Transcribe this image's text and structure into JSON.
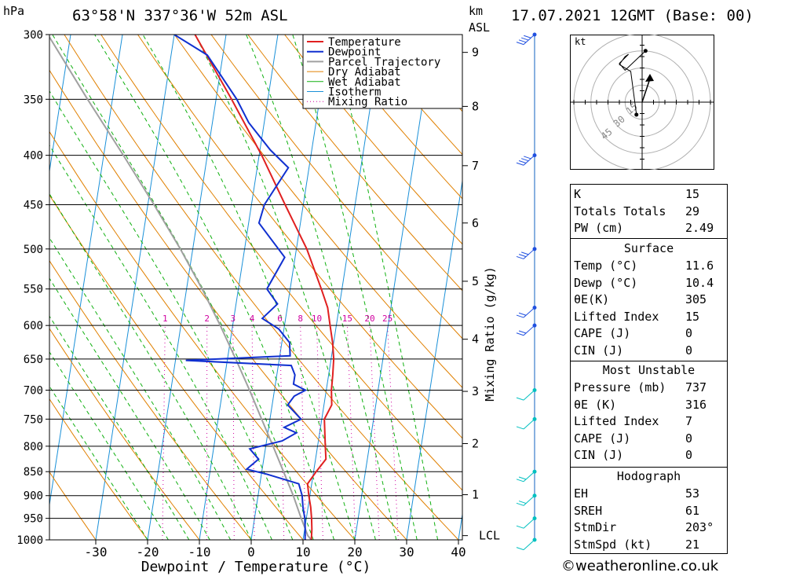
{
  "header": {
    "location": "63°58'N  337°36'W  52m  ASL",
    "datetime": "17.07.2021  12GMT  (Base: 00)",
    "left_unit": "hPa",
    "right_unit_1": "km",
    "right_unit_2": "ASL"
  },
  "chart_data": {
    "type": "skew-t",
    "xlabel": "Dewpoint / Temperature (°C)",
    "ylabel_left": "hPa",
    "ylabel_right": "Mixing Ratio (g/kg)",
    "xlim": [
      -40,
      40
    ],
    "ylim": [
      1000,
      300
    ],
    "x_ticks": [
      -30,
      -20,
      -10,
      0,
      10,
      20,
      30,
      40
    ],
    "pressure_levels": [
      300,
      350,
      400,
      450,
      500,
      550,
      600,
      650,
      700,
      750,
      800,
      850,
      900,
      950,
      1000
    ],
    "height_km_ticks": [
      {
        "label": "9",
        "p": 313
      },
      {
        "label": "8",
        "p": 356
      },
      {
        "label": "7",
        "p": 410
      },
      {
        "label": "6",
        "p": 470
      },
      {
        "label": "5",
        "p": 540
      },
      {
        "label": "4",
        "p": 620
      },
      {
        "label": "3",
        "p": 702
      },
      {
        "label": "2",
        "p": 795
      },
      {
        "label": "1",
        "p": 898
      },
      {
        "label": "LCL",
        "p": 990
      }
    ],
    "mixing_ratio_labels": [
      "1",
      "2",
      "3",
      "4",
      "6",
      "8",
      "10",
      "15",
      "20",
      "25"
    ],
    "legend": [
      "Temperature",
      "Dewpoint",
      "Parcel Trajectory",
      "Dry Adiabat",
      "Wet Adiabat",
      "Isotherm",
      "Mixing Ratio"
    ],
    "legend_placement": "top-right",
    "colors": {
      "temperature": "#e02020",
      "dewpoint": "#1030d0",
      "parcel": "#a0a0a0",
      "dry_adiabat": "#e08000",
      "wet_adiabat": "#10b010",
      "isotherm": "#1a90d8",
      "mixing_ratio": "#d000a0"
    },
    "temperature": [
      {
        "p": 1000,
        "t": 11.6
      },
      {
        "p": 975,
        "t": 11.4
      },
      {
        "p": 950,
        "t": 11.0
      },
      {
        "p": 925,
        "t": 10.5
      },
      {
        "p": 900,
        "t": 9.8
      },
      {
        "p": 875,
        "t": 9.2
      },
      {
        "p": 850,
        "t": 10.5
      },
      {
        "p": 825,
        "t": 12.0
      },
      {
        "p": 800,
        "t": 11.5
      },
      {
        "p": 775,
        "t": 11.0
      },
      {
        "p": 750,
        "t": 10.5
      },
      {
        "p": 725,
        "t": 11.5
      },
      {
        "p": 700,
        "t": 11.0
      },
      {
        "p": 675,
        "t": 10.8
      },
      {
        "p": 650,
        "t": 10.5
      },
      {
        "p": 625,
        "t": 9.8
      },
      {
        "p": 600,
        "t": 8.8
      },
      {
        "p": 575,
        "t": 7.8
      },
      {
        "p": 550,
        "t": 6.0
      },
      {
        "p": 500,
        "t": 2.0
      },
      {
        "p": 450,
        "t": -3.5
      },
      {
        "p": 400,
        "t": -9.5
      },
      {
        "p": 350,
        "t": -17.0
      },
      {
        "p": 300,
        "t": -26.0
      }
    ],
    "dewpoint": [
      {
        "p": 1000,
        "t": 10.4
      },
      {
        "p": 975,
        "t": 10.1
      },
      {
        "p": 950,
        "t": 9.7
      },
      {
        "p": 925,
        "t": 9.0
      },
      {
        "p": 900,
        "t": 8.5
      },
      {
        "p": 875,
        "t": 7.5
      },
      {
        "p": 855,
        "t": 1.0
      },
      {
        "p": 845,
        "t": -3.0
      },
      {
        "p": 825,
        "t": -1.0
      },
      {
        "p": 805,
        "t": -3.0
      },
      {
        "p": 790,
        "t": 3.0
      },
      {
        "p": 775,
        "t": 5.5
      },
      {
        "p": 765,
        "t": 3.0
      },
      {
        "p": 750,
        "t": 6.0
      },
      {
        "p": 725,
        "t": 3.0
      },
      {
        "p": 710,
        "t": 4.0
      },
      {
        "p": 700,
        "t": 6.0
      },
      {
        "p": 690,
        "t": 3.5
      },
      {
        "p": 675,
        "t": 3.5
      },
      {
        "p": 660,
        "t": 2.5
      },
      {
        "p": 652,
        "t": -18.0
      },
      {
        "p": 645,
        "t": 2.0
      },
      {
        "p": 625,
        "t": 1.5
      },
      {
        "p": 605,
        "t": -1.0
      },
      {
        "p": 590,
        "t": -4.5
      },
      {
        "p": 570,
        "t": -2.0
      },
      {
        "p": 550,
        "t": -4.5
      },
      {
        "p": 510,
        "t": -2.0
      },
      {
        "p": 470,
        "t": -8.0
      },
      {
        "p": 450,
        "t": -7.5
      },
      {
        "p": 412,
        "t": -4.0
      },
      {
        "p": 395,
        "t": -8.0
      },
      {
        "p": 370,
        "t": -13.0
      },
      {
        "p": 350,
        "t": -16.0
      },
      {
        "p": 315,
        "t": -23.0
      },
      {
        "p": 300,
        "t": -30.0
      }
    ],
    "parcel": [
      {
        "p": 1000,
        "t": 11.6
      },
      {
        "p": 990,
        "t": 10.8
      },
      {
        "p": 950,
        "t": 9.0
      },
      {
        "p": 900,
        "t": 6.8
      },
      {
        "p": 850,
        "t": 4.2
      },
      {
        "p": 800,
        "t": 1.4
      },
      {
        "p": 750,
        "t": -1.6
      },
      {
        "p": 700,
        "t": -4.8
      },
      {
        "p": 650,
        "t": -8.4
      },
      {
        "p": 600,
        "t": -12.4
      },
      {
        "p": 550,
        "t": -17.0
      },
      {
        "p": 500,
        "t": -22.4
      },
      {
        "p": 450,
        "t": -28.8
      },
      {
        "p": 400,
        "t": -36.2
      },
      {
        "p": 350,
        "t": -44.8
      },
      {
        "p": 300,
        "t": -54.4
      }
    ],
    "wind_barbs": [
      {
        "p": 300,
        "kt": 35
      },
      {
        "p": 400,
        "kt": 35
      },
      {
        "p": 500,
        "kt": 25
      },
      {
        "p": 575,
        "kt": 20
      },
      {
        "p": 600,
        "kt": 20
      },
      {
        "p": 700,
        "kt": 10
      },
      {
        "p": 750,
        "kt": 10
      },
      {
        "p": 850,
        "kt": 15
      },
      {
        "p": 900,
        "kt": 15
      },
      {
        "p": 950,
        "kt": 10
      },
      {
        "p": 1000,
        "kt": 10
      }
    ]
  },
  "hodograph": {
    "unit": "kt",
    "ring_labels": [
      "15",
      "30",
      "45"
    ]
  },
  "indices": {
    "basic": [
      {
        "k": "K",
        "v": "15"
      },
      {
        "k": "Totals Totals",
        "v": "29"
      },
      {
        "k": "PW (cm)",
        "v": "2.49"
      }
    ],
    "surface_title": "Surface",
    "surface": [
      {
        "k": "Temp (°C)",
        "v": "11.6"
      },
      {
        "k": "Dewp (°C)",
        "v": "10.4"
      },
      {
        "k": "θE(K)",
        "v": "305"
      },
      {
        "k": "Lifted Index",
        "v": "15"
      },
      {
        "k": "CAPE (J)",
        "v": "0"
      },
      {
        "k": "CIN (J)",
        "v": "0"
      }
    ],
    "mu_title": "Most Unstable",
    "mu": [
      {
        "k": "Pressure (mb)",
        "v": "737"
      },
      {
        "k": "θE (K)",
        "v": "316"
      },
      {
        "k": "Lifted Index",
        "v": "7"
      },
      {
        "k": "CAPE (J)",
        "v": "0"
      },
      {
        "k": "CIN (J)",
        "v": "0"
      }
    ],
    "hodo_title": "Hodograph",
    "hodo": [
      {
        "k": "EH",
        "v": "53"
      },
      {
        "k": "SREH",
        "v": "61"
      },
      {
        "k": "StmDir",
        "v": "203°"
      },
      {
        "k": "StmSpd (kt)",
        "v": "21"
      }
    ]
  },
  "copyright": "©weatheronline.co.uk"
}
